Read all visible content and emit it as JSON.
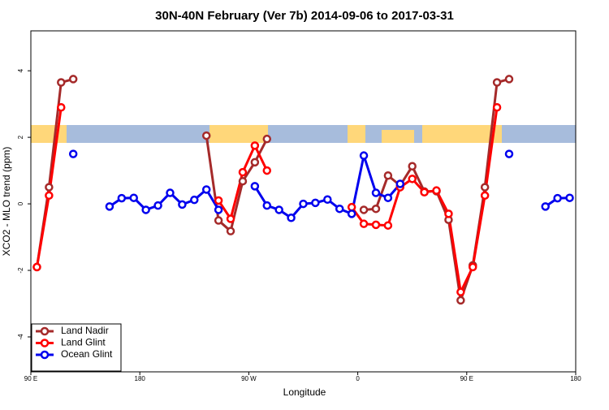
{
  "chart_data": {
    "type": "line",
    "title": "30N-40N February (Ver 7b)   2014-09-06 to 2017-03-31",
    "x_label": "Longitude",
    "y_label": "XCO2 - MLO trend (ppm)",
    "x": [
      95,
      105,
      115,
      125,
      135,
      145,
      155,
      165,
      175,
      185,
      195,
      205,
      215,
      225,
      235,
      245,
      255,
      265,
      275,
      285,
      295,
      305,
      315,
      325,
      335,
      345,
      355,
      365,
      375,
      385,
      395,
      405,
      415,
      425,
      435,
      445,
      455,
      465,
      475,
      485,
      495,
      505,
      515,
      525,
      535
    ],
    "xlim": [
      90,
      540
    ],
    "xticks": [
      {
        "value": 90,
        "label": "90 E"
      },
      {
        "value": 180,
        "label": "180"
      },
      {
        "value": 270,
        "label": "90 W"
      },
      {
        "value": 360,
        "label": "0"
      },
      {
        "value": 450,
        "label": "90 E"
      },
      {
        "value": 540,
        "label": "180"
      }
    ],
    "ylim": [
      -5.05,
      5.2
    ],
    "yticks": [
      -4,
      -2,
      0,
      2,
      4
    ],
    "legend": "bottomleft",
    "series": [
      {
        "name": "Land Nadir",
        "color": "#a52a2a",
        "values": [
          -1.9,
          0.5,
          3.65,
          3.75,
          null,
          null,
          null,
          null,
          null,
          null,
          null,
          null,
          null,
          null,
          2.05,
          -0.5,
          -0.82,
          0.68,
          1.25,
          1.95,
          null,
          null,
          null,
          null,
          null,
          null,
          null,
          -0.18,
          -0.15,
          0.85,
          0.55,
          1.13,
          0.37,
          0.38,
          -0.48,
          -2.9,
          -1.85,
          0.5,
          3.65,
          3.75,
          null,
          null,
          null,
          null,
          null
        ]
      },
      {
        "name": "Land Glint",
        "color": "#ff0000",
        "values": [
          -1.9,
          0.25,
          2.9,
          null,
          null,
          null,
          null,
          null,
          null,
          null,
          null,
          null,
          null,
          null,
          null,
          0.1,
          -0.45,
          0.95,
          1.75,
          1.0,
          null,
          null,
          null,
          null,
          null,
          null,
          -0.1,
          -0.6,
          -0.63,
          -0.65,
          0.5,
          0.75,
          0.35,
          0.4,
          -0.3,
          -2.65,
          -1.9,
          0.25,
          2.9,
          null,
          null,
          null,
          null,
          null,
          null
        ]
      },
      {
        "name": "Ocean Glint",
        "color": "#0000ee",
        "values": [
          null,
          null,
          null,
          1.5,
          null,
          null,
          -0.08,
          0.17,
          0.18,
          -0.18,
          -0.05,
          0.33,
          -0.02,
          0.12,
          0.43,
          -0.18,
          null,
          null,
          0.53,
          -0.05,
          -0.18,
          -0.42,
          0.0,
          0.03,
          0.13,
          -0.15,
          -0.3,
          1.45,
          0.33,
          0.18,
          0.6,
          null,
          null,
          null,
          null,
          null,
          null,
          null,
          null,
          1.5,
          null,
          null,
          -0.08,
          0.17,
          0.18
        ]
      }
    ]
  }
}
